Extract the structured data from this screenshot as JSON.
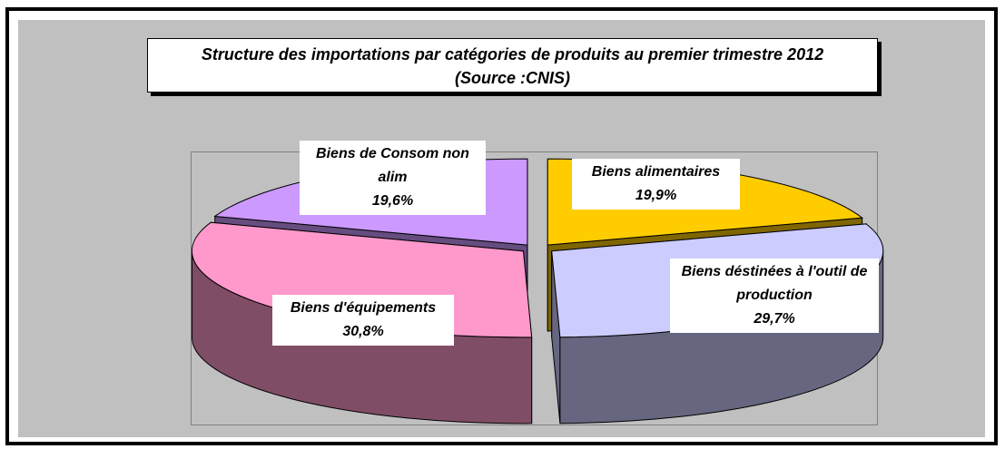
{
  "chart_data": {
    "type": "pie",
    "title": "Structure des importations par catégories de produits au premier trimestre  2012",
    "subtitle": "(Source :CNIS)",
    "categories": [
      "Biens alimentaires",
      "Biens déstinées à l'outil de production",
      "Biens d'équipements",
      "Biens de  Consom non alim"
    ],
    "values": [
      19.9,
      29.7,
      30.8,
      19.6
    ],
    "value_labels": [
      "19,9%",
      "29,7%",
      "30,8%",
      "19,6%"
    ],
    "colors": [
      "#ffcc00",
      "#ccccff",
      "#ff99cc",
      "#cc99ff"
    ]
  }
}
